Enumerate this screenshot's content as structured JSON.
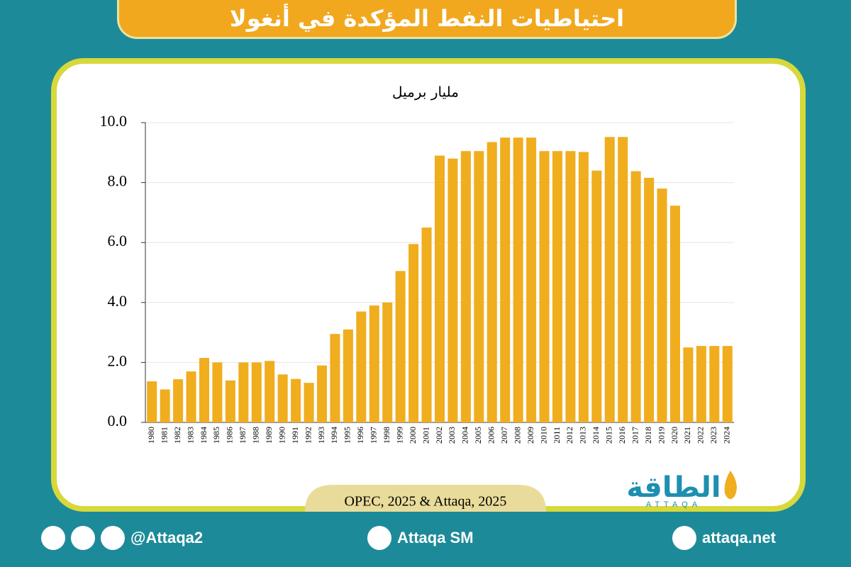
{
  "header": {
    "title": "احتياطيات النفط المؤكدة في أنغولا"
  },
  "chart_data": {
    "type": "bar",
    "y_label": "مليار برميل",
    "categories": [
      "1980",
      "1981",
      "1982",
      "1983",
      "1984",
      "1985",
      "1986",
      "1987",
      "1988",
      "1989",
      "1990",
      "1991",
      "1992",
      "1993",
      "1994",
      "1995",
      "1996",
      "1997",
      "1998",
      "1999",
      "2000",
      "2001",
      "2002",
      "2003",
      "2004",
      "2005",
      "2006",
      "2007",
      "2008",
      "2009",
      "2010",
      "2011",
      "2012",
      "2013",
      "2014",
      "2015",
      "2016",
      "2017",
      "2018",
      "2019",
      "2020",
      "2021",
      "2022",
      "2023",
      "2024"
    ],
    "values": [
      1.37,
      1.1,
      1.44,
      1.7,
      2.15,
      2.0,
      1.4,
      2.0,
      2.0,
      2.05,
      1.6,
      1.45,
      1.32,
      1.9,
      2.95,
      3.1,
      3.7,
      3.9,
      4.0,
      5.05,
      5.95,
      6.5,
      8.9,
      8.8,
      9.05,
      9.05,
      9.35,
      9.5,
      9.5,
      9.5,
      9.05,
      9.05,
      9.05,
      9.02,
      8.4,
      9.52,
      9.52,
      8.38,
      8.16,
      7.8,
      7.23,
      2.5,
      2.55,
      2.55,
      2.55
    ],
    "color": "#f0ad1e",
    "ylim": [
      0,
      10
    ],
    "yticks": [
      {
        "value": 0,
        "label": "0.0"
      },
      {
        "value": 2,
        "label": "2.0"
      },
      {
        "value": 4,
        "label": "4.0"
      },
      {
        "value": 6,
        "label": "6.0"
      },
      {
        "value": 8,
        "label": "8.0"
      },
      {
        "value": 10,
        "label": "10.0"
      }
    ],
    "grid": true
  },
  "source": "OPEC, 2025 & Attaqa, 2025",
  "logo": {
    "text": "الطاقة",
    "subtext": "ATTAQA"
  },
  "footer": {
    "social": "@Attaqa2",
    "youtube": "Attaqa SM",
    "website": "attaqa.net"
  }
}
